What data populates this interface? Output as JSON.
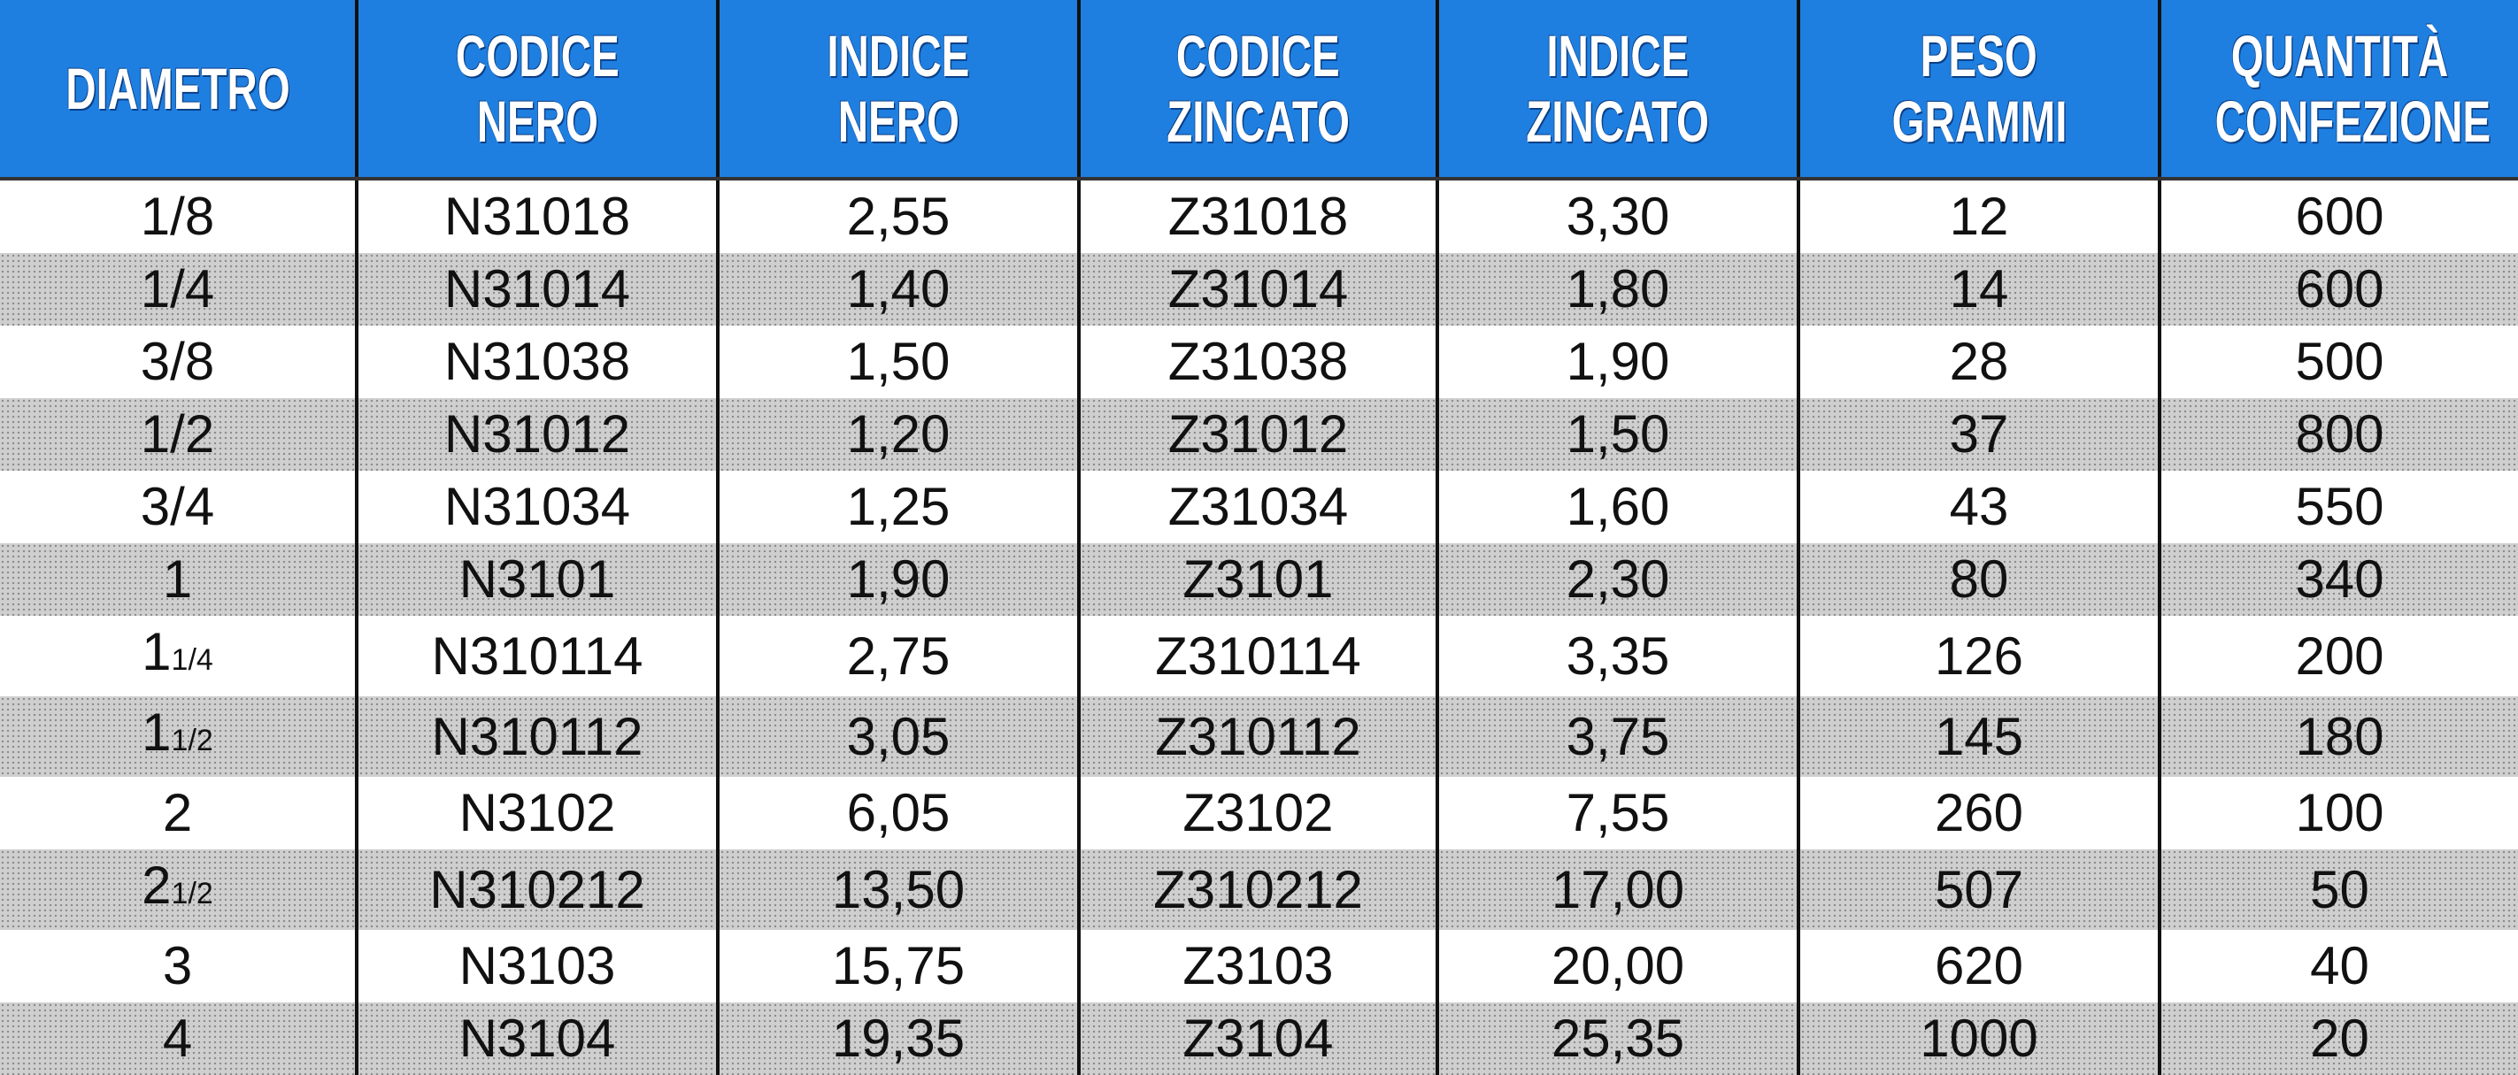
{
  "header_color": "#1e7fe0",
  "headers": [
    [
      "DIAMETRO"
    ],
    [
      "CODICE",
      "NERO"
    ],
    [
      "INDICE",
      "NERO"
    ],
    [
      "CODICE",
      "ZINCATO"
    ],
    [
      "INDICE",
      "ZINCATO"
    ],
    [
      "PESO",
      "GRAMMI"
    ],
    [
      "QUANTITÀ",
      "CONFEZIONE"
    ]
  ],
  "rows": [
    {
      "diam_whole": "",
      "diam_frac": "1/8",
      "codice_nero": "N31018",
      "indice_nero": "2,55",
      "codice_zincato": "Z31018",
      "indice_zincato": "3,30",
      "peso": "12",
      "quantita": "600"
    },
    {
      "diam_whole": "",
      "diam_frac": "1/4",
      "codice_nero": "N31014",
      "indice_nero": "1,40",
      "codice_zincato": "Z31014",
      "indice_zincato": "1,80",
      "peso": "14",
      "quantita": "600"
    },
    {
      "diam_whole": "",
      "diam_frac": "3/8",
      "codice_nero": "N31038",
      "indice_nero": "1,50",
      "codice_zincato": "Z31038",
      "indice_zincato": "1,90",
      "peso": "28",
      "quantita": "500"
    },
    {
      "diam_whole": "",
      "diam_frac": "1/2",
      "codice_nero": "N31012",
      "indice_nero": "1,20",
      "codice_zincato": "Z31012",
      "indice_zincato": "1,50",
      "peso": "37",
      "quantita": "800"
    },
    {
      "diam_whole": "",
      "diam_frac": "3/4",
      "codice_nero": "N31034",
      "indice_nero": "1,25",
      "codice_zincato": "Z31034",
      "indice_zincato": "1,60",
      "peso": "43",
      "quantita": "550"
    },
    {
      "diam_whole": "1",
      "diam_frac": "",
      "codice_nero": "N3101",
      "indice_nero": "1,90",
      "codice_zincato": "Z3101",
      "indice_zincato": "2,30",
      "peso": "80",
      "quantita": "340"
    },
    {
      "diam_whole": "1",
      "diam_frac_small": "1/4",
      "codice_nero": "N310114",
      "indice_nero": "2,75",
      "codice_zincato": "Z310114",
      "indice_zincato": "3,35",
      "peso": "126",
      "quantita": "200"
    },
    {
      "diam_whole": "1",
      "diam_frac_small": "1/2",
      "codice_nero": "N310112",
      "indice_nero": "3,05",
      "codice_zincato": "Z310112",
      "indice_zincato": "3,75",
      "peso": "145",
      "quantita": "180"
    },
    {
      "diam_whole": "2",
      "diam_frac": "",
      "codice_nero": "N3102",
      "indice_nero": "6,05",
      "codice_zincato": "Z3102",
      "indice_zincato": "7,55",
      "peso": "260",
      "quantita": "100"
    },
    {
      "diam_whole": "2",
      "diam_frac_small": "1/2",
      "codice_nero": "N310212",
      "indice_nero": "13,50",
      "codice_zincato": "Z310212",
      "indice_zincato": "17,00",
      "peso": "507",
      "quantita": "50"
    },
    {
      "diam_whole": "3",
      "diam_frac": "",
      "codice_nero": "N3103",
      "indice_nero": "15,75",
      "codice_zincato": "Z3103",
      "indice_zincato": "20,00",
      "peso": "620",
      "quantita": "40"
    },
    {
      "diam_whole": "4",
      "diam_frac": "",
      "codice_nero": "N3104",
      "indice_nero": "19,35",
      "codice_zincato": "Z3104",
      "indice_zincato": "25,35",
      "peso": "1000",
      "quantita": "20"
    }
  ]
}
